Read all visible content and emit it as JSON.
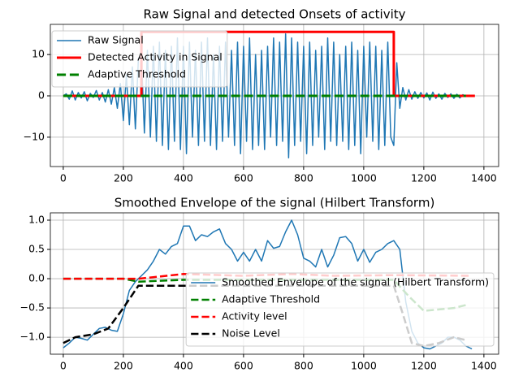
{
  "chart_data": [
    {
      "type": "line",
      "title": "Raw Signal and detected Onsets of activity",
      "xlim": [
        -43,
        1449
      ],
      "xticks": [
        0,
        200,
        400,
        600,
        800,
        1000,
        1200,
        1400
      ],
      "ylim": [
        -17.1,
        17.3
      ],
      "yticks": [
        {
          "value": -10,
          "label": "−10"
        },
        0,
        10
      ],
      "grid": true,
      "legend": "upper left",
      "series": [
        {
          "name": "Raw Signal",
          "color": "#1f77b4",
          "width": 1.5,
          "dashed": false,
          "x": [
            0,
            10,
            20,
            30,
            40,
            50,
            60,
            70,
            80,
            90,
            100,
            110,
            120,
            130,
            140,
            150,
            160,
            170,
            180,
            190,
            200,
            210,
            220,
            230,
            240,
            250,
            260,
            270,
            280,
            290,
            300,
            310,
            320,
            330,
            340,
            350,
            360,
            370,
            380,
            390,
            400,
            410,
            420,
            430,
            440,
            450,
            460,
            470,
            480,
            490,
            500,
            510,
            520,
            530,
            540,
            550,
            560,
            570,
            580,
            590,
            600,
            610,
            620,
            630,
            640,
            650,
            660,
            670,
            680,
            690,
            700,
            710,
            720,
            730,
            740,
            750,
            760,
            770,
            780,
            790,
            800,
            810,
            820,
            830,
            840,
            850,
            860,
            870,
            880,
            890,
            900,
            910,
            920,
            930,
            940,
            950,
            960,
            970,
            980,
            990,
            1000,
            1010,
            1020,
            1030,
            1040,
            1050,
            1060,
            1070,
            1080,
            1090,
            1100,
            1110,
            1120,
            1130,
            1140,
            1150,
            1160,
            1170,
            1180,
            1190,
            1200,
            1210,
            1220,
            1230,
            1240,
            1250,
            1260,
            1270,
            1280,
            1290,
            1300,
            1310,
            1320,
            1330,
            1340
          ],
          "values": [
            0,
            0.5,
            -0.8,
            1.2,
            -1,
            0.8,
            -0.5,
            1,
            -1.2,
            0.6,
            -0.4,
            1.3,
            -1,
            0.8,
            -1.5,
            1.5,
            -2,
            2,
            -3,
            3,
            -6,
            5,
            -7,
            7,
            -8,
            9,
            10,
            -9,
            11,
            -10,
            12,
            -11,
            13,
            -12,
            11,
            -13,
            12,
            -11,
            14,
            -13,
            12,
            -14,
            13,
            -10,
            11,
            -12,
            13,
            -11,
            14,
            -12,
            10,
            -13,
            12,
            -11,
            13,
            -10,
            11,
            -12,
            13,
            -14,
            12,
            -11,
            14,
            -13,
            10,
            -12,
            11,
            -13,
            12,
            -10,
            14,
            -12,
            13,
            -11,
            15,
            -15,
            14,
            -12,
            13,
            -11,
            12,
            -14,
            13,
            -12,
            11,
            -10,
            12,
            -13,
            14,
            -11,
            13,
            -12,
            10,
            -11,
            12,
            -13,
            13,
            -12,
            11,
            -14,
            12,
            -10,
            13,
            -11,
            12,
            -13,
            11,
            -12,
            13,
            -10,
            -12,
            8,
            -3,
            2,
            -1,
            1.5,
            -0.8,
            1,
            -0.6,
            0.8,
            -0.5,
            0.7,
            -1,
            0.9,
            -0.6,
            0.5,
            -0.8,
            0.6,
            -0.4,
            0.5,
            -0.6,
            0.4,
            -0.5,
            0.3,
            -0.2
          ]
        },
        {
          "name": "Detected Activity in Signal",
          "color": "#ff0000",
          "width": 3,
          "dashed": false,
          "x": [
            0,
            260,
            260,
            1100,
            1100,
            1370
          ],
          "values": [
            0,
            0,
            15.5,
            15.5,
            0,
            0
          ]
        },
        {
          "name": "Adaptive Threshold",
          "color": "#008000",
          "width": 3,
          "dashed": true,
          "x": [
            0,
            1340
          ],
          "values": [
            0,
            0
          ]
        }
      ]
    },
    {
      "type": "line",
      "title": "Smoothed Envelope of the signal (Hilbert Transform)",
      "xlim": [
        -43,
        1449
      ],
      "xticks": [
        0,
        200,
        400,
        600,
        800,
        1000,
        1200,
        1400
      ],
      "ylim": [
        -1.29,
        1.125
      ],
      "yticks": [
        {
          "value": -1,
          "label": "−1.0"
        },
        {
          "value": -0.5,
          "label": "−0.5"
        },
        {
          "value": 0,
          "label": "0.0"
        },
        {
          "value": 0.5,
          "label": "0.5"
        },
        {
          "value": 1,
          "label": "1.0"
        }
      ],
      "grid": true,
      "legend": "lower right",
      "series": [
        {
          "name": "Smoothed Envelope of the signal (Hilbert Transform)",
          "color": "#1f77b4",
          "width": 1.5,
          "dashed": false,
          "x": [
            0,
            20,
            40,
            60,
            80,
            100,
            120,
            140,
            160,
            180,
            200,
            220,
            240,
            260,
            280,
            300,
            320,
            340,
            360,
            380,
            400,
            420,
            440,
            460,
            480,
            500,
            520,
            540,
            560,
            580,
            600,
            620,
            640,
            660,
            680,
            700,
            720,
            740,
            760,
            780,
            800,
            820,
            840,
            860,
            880,
            900,
            920,
            940,
            960,
            980,
            1000,
            1020,
            1040,
            1060,
            1080,
            1100,
            1120,
            1140,
            1160,
            1180,
            1200,
            1220,
            1240,
            1260,
            1280,
            1300,
            1320,
            1340,
            1360
          ],
          "values": [
            -1.18,
            -1.1,
            -1.0,
            -1.02,
            -1.05,
            -0.95,
            -0.85,
            -0.83,
            -0.88,
            -0.9,
            -0.6,
            -0.2,
            -0.05,
            0.05,
            0.15,
            0.3,
            0.5,
            0.42,
            0.55,
            0.6,
            0.9,
            0.9,
            0.65,
            0.75,
            0.72,
            0.8,
            0.85,
            0.6,
            0.5,
            0.3,
            0.45,
            0.3,
            0.5,
            0.3,
            0.65,
            0.52,
            0.55,
            0.8,
            1.0,
            0.75,
            0.35,
            0.3,
            0.2,
            0.5,
            0.2,
            0.4,
            0.7,
            0.72,
            0.6,
            0.3,
            0.5,
            0.28,
            0.45,
            0.5,
            0.6,
            0.65,
            0.5,
            -0.4,
            -0.9,
            -1.1,
            -1.18,
            -1.2,
            -1.15,
            -1.1,
            -1.0,
            -1.0,
            -1.05,
            -1.15,
            -1.2
          ]
        },
        {
          "name": "Adaptive Threshold",
          "color": "#008000",
          "width": 2.5,
          "dashed": true,
          "x": [
            0,
            100,
            200,
            250,
            400,
            1100,
            1150,
            1200,
            1300,
            1340
          ],
          "values": [
            0,
            0,
            0,
            -0.05,
            -0.02,
            -0.02,
            -0.3,
            -0.55,
            -0.5,
            -0.45
          ]
        },
        {
          "name": "Activity level",
          "color": "#ff0000",
          "width": 2.5,
          "dashed": true,
          "x": [
            0,
            250,
            400,
            600,
            760,
            900,
            1100,
            1350
          ],
          "values": [
            0,
            0,
            0.08,
            0.05,
            0.08,
            0.05,
            0.06,
            0.05
          ]
        },
        {
          "name": "Noise Level",
          "color": "#000000",
          "width": 2.5,
          "dashed": true,
          "x": [
            0,
            40,
            100,
            150,
            200,
            250,
            300,
            1100,
            1130,
            1160,
            1200,
            1250,
            1300,
            1340
          ],
          "values": [
            -1.1,
            -1.0,
            -0.95,
            -0.85,
            -0.5,
            -0.12,
            -0.12,
            -0.12,
            -0.6,
            -1.1,
            -1.15,
            -1.1,
            -1.0,
            -1.05
          ]
        }
      ]
    }
  ]
}
